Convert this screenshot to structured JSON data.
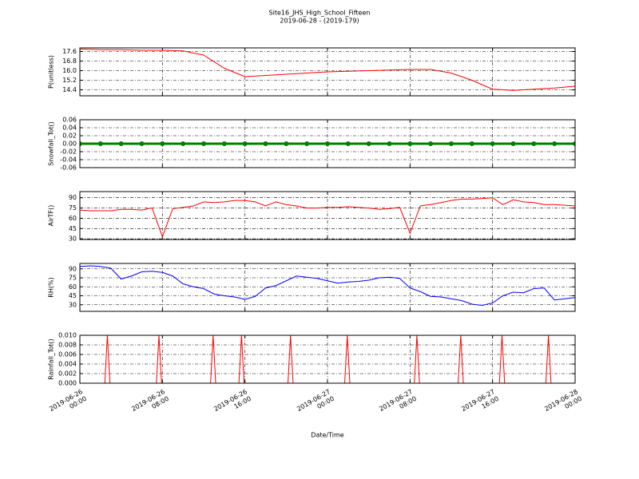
{
  "chart_data": [
    {
      "type": "line",
      "title": "Site16_JHS_High_School_Fifteen",
      "subtitle": "2019-06-28 - (2019-179)",
      "ylabel": "P(unitless)",
      "color": "#ff0000",
      "x": [
        "2019-06-26 00:00",
        "2019-06-26 02:00",
        "2019-06-26 04:00",
        "2019-06-26 06:00",
        "2019-06-26 08:00",
        "2019-06-26 10:00",
        "2019-06-26 12:00",
        "2019-06-26 14:00",
        "2019-06-26 16:00",
        "2019-06-26 18:00",
        "2019-06-26 20:00",
        "2019-06-26 22:00",
        "2019-06-27 00:00",
        "2019-06-27 02:00",
        "2019-06-27 04:00",
        "2019-06-27 06:00",
        "2019-06-27 08:00",
        "2019-06-27 10:00",
        "2019-06-27 12:00",
        "2019-06-27 14:00",
        "2019-06-27 16:00",
        "2019-06-27 18:00",
        "2019-06-27 20:00",
        "2019-06-27 22:00",
        "2019-06-28 00:00"
      ],
      "values": [
        17.8,
        17.75,
        17.75,
        17.7,
        17.7,
        17.65,
        17.3,
        16.2,
        15.5,
        15.6,
        15.7,
        15.8,
        15.9,
        15.95,
        16.0,
        16.05,
        16.1,
        16.1,
        15.8,
        15.2,
        14.45,
        14.35,
        14.45,
        14.55,
        14.7
      ],
      "xlim": [
        "2019-06-26 00:00",
        "2019-06-28 00:00"
      ],
      "ylim": [
        13.9,
        17.9
      ],
      "yticks": [
        14.4,
        15.2,
        {
          "value": 16.0,
          "label": "16.0"
        },
        16.8,
        17.6
      ],
      "grid": true
    },
    {
      "type": "line",
      "ylabel": "Snowfall_Tot()",
      "color": "#008000",
      "marker": true,
      "x": [
        "2019-06-26 00:00",
        "2019-06-26 02:00",
        "2019-06-26 04:00",
        "2019-06-26 06:00",
        "2019-06-26 08:00",
        "2019-06-26 10:00",
        "2019-06-26 12:00",
        "2019-06-26 14:00",
        "2019-06-26 16:00",
        "2019-06-26 18:00",
        "2019-06-26 20:00",
        "2019-06-26 22:00",
        "2019-06-27 00:00",
        "2019-06-27 02:00",
        "2019-06-27 04:00",
        "2019-06-27 06:00",
        "2019-06-27 08:00",
        "2019-06-27 10:00",
        "2019-06-27 12:00",
        "2019-06-27 14:00",
        "2019-06-27 16:00",
        "2019-06-27 18:00",
        "2019-06-27 20:00",
        "2019-06-27 22:00",
        "2019-06-28 00:00"
      ],
      "values": [
        0,
        0,
        0,
        0,
        0,
        0,
        0,
        0,
        0,
        0,
        0,
        0,
        0,
        0,
        0,
        0,
        0,
        0,
        0,
        0,
        0,
        0,
        0,
        0,
        0
      ],
      "xlim": [
        "2019-06-26 00:00",
        "2019-06-28 00:00"
      ],
      "ylim": [
        -0.06,
        0.06
      ],
      "yticks": [
        -0.06,
        -0.04,
        -0.02,
        {
          "value": 0,
          "label": "0.00"
        },
        0.02,
        0.04,
        0.06
      ],
      "grid": true
    },
    {
      "type": "line",
      "ylabel": "AirTF()",
      "color": "#ff0000",
      "x": [
        "2019-06-26 00:00",
        "2019-06-26 01:00",
        "2019-06-26 02:00",
        "2019-06-26 03:00",
        "2019-06-26 04:00",
        "2019-06-26 05:00",
        "2019-06-26 06:00",
        "2019-06-26 07:00",
        "2019-06-26 08:00",
        "2019-06-26 09:00",
        "2019-06-26 10:00",
        "2019-06-26 11:00",
        "2019-06-26 12:00",
        "2019-06-26 13:00",
        "2019-06-26 14:00",
        "2019-06-26 15:00",
        "2019-06-26 16:00",
        "2019-06-26 17:00",
        "2019-06-26 18:00",
        "2019-06-26 19:00",
        "2019-06-26 20:00",
        "2019-06-26 21:00",
        "2019-06-26 22:00",
        "2019-06-26 23:00",
        "2019-06-27 00:00",
        "2019-06-27 01:00",
        "2019-06-27 02:00",
        "2019-06-27 03:00",
        "2019-06-27 04:00",
        "2019-06-27 05:00",
        "2019-06-27 06:00",
        "2019-06-27 07:00",
        "2019-06-27 08:00",
        "2019-06-27 09:00",
        "2019-06-27 10:00",
        "2019-06-27 11:00",
        "2019-06-27 12:00",
        "2019-06-27 13:00",
        "2019-06-27 14:00",
        "2019-06-27 15:00",
        "2019-06-27 16:00",
        "2019-06-27 17:00",
        "2019-06-27 18:00",
        "2019-06-27 19:00",
        "2019-06-27 20:00",
        "2019-06-27 21:00",
        "2019-06-27 22:00",
        "2019-06-27 23:00",
        "2019-06-28 00:00"
      ],
      "values": [
        72,
        71,
        71,
        71,
        73,
        73,
        72,
        75,
        33,
        74,
        76,
        78,
        84,
        83,
        84,
        86,
        86,
        84,
        78,
        84,
        80,
        78,
        75,
        75,
        76,
        76,
        77,
        76,
        75,
        73,
        74,
        76,
        38,
        78,
        80,
        83,
        86,
        88,
        88,
        89,
        90,
        80,
        87,
        84,
        83,
        80,
        80,
        79,
        78
      ],
      "xlim": [
        "2019-06-26 00:00",
        "2019-06-28 00:00"
      ],
      "ylim": [
        29,
        99
      ],
      "yticks": [
        30,
        45,
        60,
        75,
        90
      ],
      "grid": true
    },
    {
      "type": "line",
      "ylabel": "RH(%)",
      "color": "#0000ff",
      "x": [
        "2019-06-26 00:00",
        "2019-06-26 01:00",
        "2019-06-26 02:00",
        "2019-06-26 03:00",
        "2019-06-26 04:00",
        "2019-06-26 05:00",
        "2019-06-26 06:00",
        "2019-06-26 07:00",
        "2019-06-26 08:00",
        "2019-06-26 09:00",
        "2019-06-26 10:00",
        "2019-06-26 11:00",
        "2019-06-26 12:00",
        "2019-06-26 13:00",
        "2019-06-26 14:00",
        "2019-06-26 15:00",
        "2019-06-26 16:00",
        "2019-06-26 17:00",
        "2019-06-26 18:00",
        "2019-06-26 19:00",
        "2019-06-26 20:00",
        "2019-06-26 21:00",
        "2019-06-26 22:00",
        "2019-06-26 23:00",
        "2019-06-27 00:00",
        "2019-06-27 01:00",
        "2019-06-27 02:00",
        "2019-06-27 03:00",
        "2019-06-27 04:00",
        "2019-06-27 05:00",
        "2019-06-27 06:00",
        "2019-06-27 07:00",
        "2019-06-27 08:00",
        "2019-06-27 09:00",
        "2019-06-27 10:00",
        "2019-06-27 11:00",
        "2019-06-27 12:00",
        "2019-06-27 13:00",
        "2019-06-27 14:00",
        "2019-06-27 15:00",
        "2019-06-27 16:00",
        "2019-06-27 17:00",
        "2019-06-27 18:00",
        "2019-06-27 19:00",
        "2019-06-27 20:00",
        "2019-06-27 21:00",
        "2019-06-27 22:00",
        "2019-06-27 23:00",
        "2019-06-28 00:00"
      ],
      "values": [
        94,
        95,
        94,
        91,
        73,
        78,
        85,
        86,
        84,
        78,
        65,
        60,
        57,
        48,
        45,
        43,
        39,
        44,
        58,
        62,
        70,
        78,
        76,
        74,
        70,
        66,
        68,
        69,
        71,
        75,
        76,
        74,
        58,
        52,
        44,
        43,
        40,
        37,
        31,
        29,
        33,
        45,
        51,
        50,
        57,
        58,
        38,
        40,
        42
      ],
      "xlim": [
        "2019-06-26 00:00",
        "2019-06-28 00:00"
      ],
      "ylim": [
        19,
        99
      ],
      "yticks": [
        30,
        45,
        60,
        75,
        90
      ],
      "grid": true
    },
    {
      "type": "line",
      "ylabel": "Rainfall_Tot()",
      "xlabel": "Date/Time",
      "color": "#ff0000",
      "x": [
        "2019-06-26 00:00",
        "2019-06-26 02:25",
        "2019-06-26 02:40",
        "2019-06-26 02:55",
        "2019-06-26 07:25",
        "2019-06-26 07:40",
        "2019-06-26 07:55",
        "2019-06-26 12:40",
        "2019-06-26 12:55",
        "2019-06-26 13:10",
        "2019-06-26 15:25",
        "2019-06-26 15:40",
        "2019-06-26 15:55",
        "2019-06-26 20:10",
        "2019-06-26 20:25",
        "2019-06-26 20:40",
        "2019-06-27 01:40",
        "2019-06-27 01:55",
        "2019-06-27 02:10",
        "2019-06-27 08:25",
        "2019-06-27 08:40",
        "2019-06-27 08:55",
        "2019-06-27 12:40",
        "2019-06-27 12:55",
        "2019-06-27 13:10",
        "2019-06-27 16:40",
        "2019-06-27 16:55",
        "2019-06-27 17:10",
        "2019-06-27 21:10",
        "2019-06-27 21:25",
        "2019-06-27 21:40",
        "2019-06-28 00:00"
      ],
      "values": [
        0,
        0,
        0.01,
        0,
        0,
        0.01,
        0,
        0,
        0.01,
        0,
        0,
        0.01,
        0,
        0,
        0.01,
        0,
        0,
        0.01,
        0,
        0,
        0.01,
        0,
        0,
        0.01,
        0,
        0,
        0.01,
        0,
        0,
        0.01,
        0,
        0
      ],
      "xlim": [
        "2019-06-26 00:00",
        "2019-06-28 00:00"
      ],
      "ylim": [
        0,
        0.01
      ],
      "yticks": [
        {
          "value": 0,
          "label": "0.000"
        },
        {
          "value": 0.002,
          "label": "0.002"
        },
        {
          "value": 0.004,
          "label": "0.004"
        },
        {
          "value": 0.006,
          "label": "0.006"
        },
        {
          "value": 0.008,
          "label": "0.008"
        },
        {
          "value": 0.01,
          "label": "0.010"
        }
      ],
      "xticks": [
        {
          "value": "2019-06-26 00:00",
          "label": "2019-06-26\n00:00"
        },
        {
          "value": "2019-06-26 08:00",
          "label": "2019-06-26\n08:00"
        },
        {
          "value": "2019-06-26 16:00",
          "label": "2019-06-26\n16:00"
        },
        {
          "value": "2019-06-27 00:00",
          "label": "2019-06-27\n00:00"
        },
        {
          "value": "2019-06-27 08:00",
          "label": "2019-06-27\n08:00"
        },
        {
          "value": "2019-06-27 16:00",
          "label": "2019-06-27\n16:00"
        },
        {
          "value": "2019-06-28 00:00",
          "label": "2019-06-28\n00:00"
        }
      ],
      "grid": true
    }
  ]
}
